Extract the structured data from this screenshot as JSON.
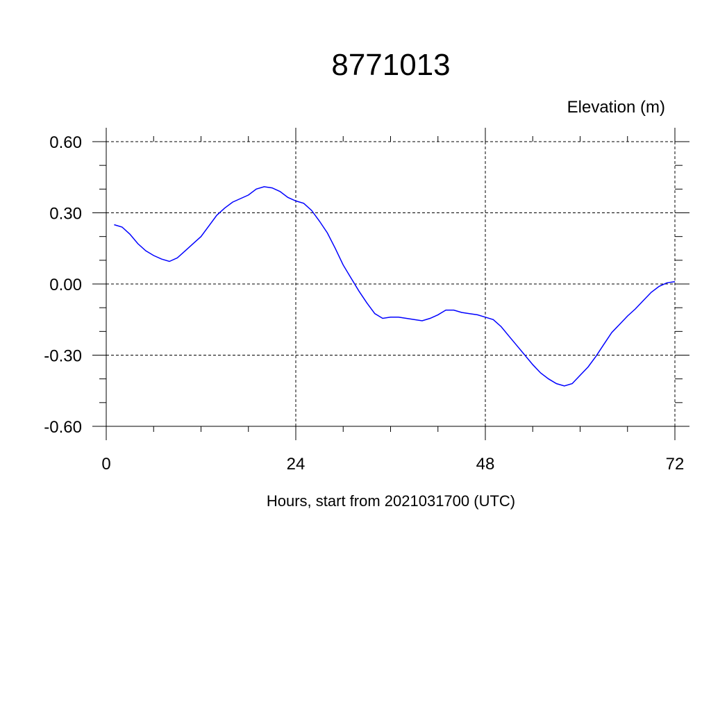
{
  "chart_data": {
    "type": "line",
    "title": "8771013",
    "ylabel": "Elevation (m)",
    "xlabel": "Hours, start from 2021031700 (UTC)",
    "xlim": [
      0,
      72
    ],
    "ylim": [
      -0.6,
      0.6
    ],
    "x_ticks": [
      0,
      24,
      48,
      72
    ],
    "x_tick_labels": [
      "0",
      "24",
      "48",
      "72"
    ],
    "y_ticks": [
      0.6,
      0.3,
      0.0,
      -0.3,
      -0.6
    ],
    "y_tick_labels": [
      "0.60",
      "0.30",
      "0.00",
      "-0.30",
      "-0.60"
    ],
    "grid": true,
    "series_color": "#0000ff",
    "series": [
      {
        "x": [
          1,
          2,
          3,
          4,
          5,
          6,
          7,
          8,
          9,
          10,
          11,
          12,
          13,
          14,
          15,
          16,
          17,
          18,
          19,
          20,
          21,
          22,
          23,
          24,
          25,
          26,
          27,
          28,
          29,
          30,
          31,
          32,
          33,
          34,
          35,
          36,
          37,
          38,
          39,
          40,
          41,
          42,
          43,
          44,
          45,
          46,
          47,
          48,
          49,
          50,
          51,
          52,
          53,
          54,
          55,
          56,
          57,
          58,
          59,
          60,
          61,
          62,
          63,
          64,
          65,
          66,
          67,
          68,
          69,
          70,
          71,
          72
        ],
        "y": [
          0.25,
          0.24,
          0.21,
          0.17,
          0.14,
          0.12,
          0.105,
          0.095,
          0.11,
          0.14,
          0.17,
          0.2,
          0.245,
          0.29,
          0.32,
          0.345,
          0.36,
          0.375,
          0.4,
          0.41,
          0.405,
          0.39,
          0.365,
          0.35,
          0.34,
          0.31,
          0.265,
          0.215,
          0.15,
          0.08,
          0.025,
          -0.03,
          -0.08,
          -0.125,
          -0.145,
          -0.14,
          -0.14,
          -0.145,
          -0.15,
          -0.155,
          -0.145,
          -0.13,
          -0.11,
          -0.11,
          -0.12,
          -0.125,
          -0.13,
          -0.14,
          -0.15,
          -0.18,
          -0.22,
          -0.26,
          -0.3,
          -0.34,
          -0.375,
          -0.4,
          -0.42,
          -0.43,
          -0.42,
          -0.385,
          -0.35,
          -0.305,
          -0.255,
          -0.205,
          -0.17,
          -0.135,
          -0.105,
          -0.07,
          -0.035,
          -0.01,
          0.005,
          0.01
        ]
      }
    ]
  }
}
